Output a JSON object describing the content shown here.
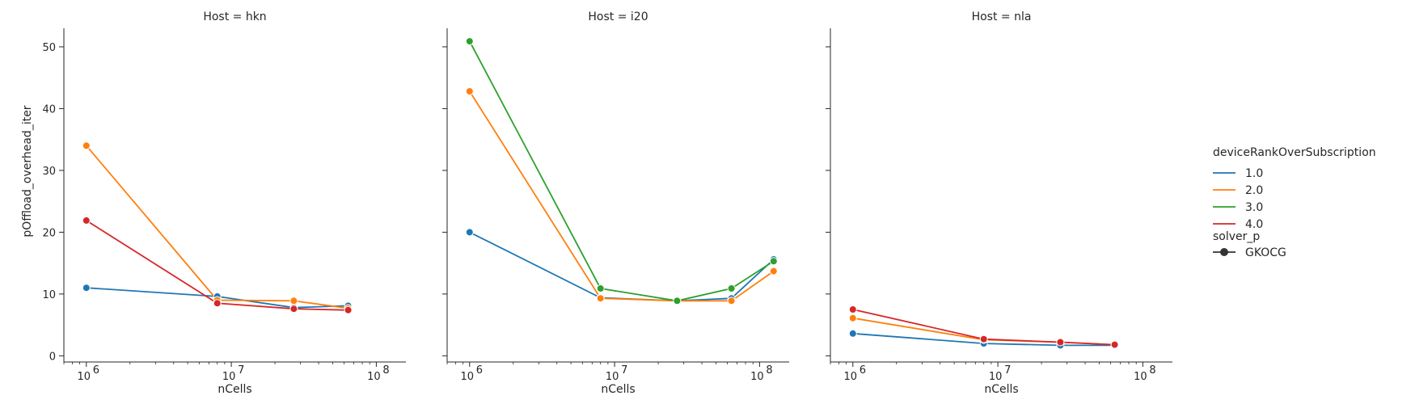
{
  "chart_data": {
    "type": "line",
    "xscale": "log",
    "xlabel": "nCells",
    "ylabel": "pOffload_overhead_iter",
    "xlim": [
      700000,
      160000000
    ],
    "ylim": [
      -1,
      53
    ],
    "xticks": [
      {
        "value": 1000000,
        "base": "10",
        "exp": "6"
      },
      {
        "value": 10000000,
        "base": "10",
        "exp": "7"
      },
      {
        "value": 100000000,
        "base": "10",
        "exp": "8"
      }
    ],
    "yticks": [
      0,
      10,
      20,
      30,
      40,
      50
    ],
    "legend": {
      "hue_title": "deviceRankOverSubscription",
      "style_title": "solver_p",
      "style_entry": "GKOCG",
      "placement": "right"
    },
    "colors": {
      "1.0": "#1f77b4",
      "2.0": "#ff7f0e",
      "3.0": "#2ca02c",
      "4.0": "#d62728"
    },
    "series_names": [
      "1.0",
      "2.0",
      "3.0",
      "4.0"
    ],
    "panels": [
      {
        "title": "Host = hkn",
        "series": [
          {
            "name": "1.0",
            "x": [
              1000000,
              8000000,
              27000000,
              64000000
            ],
            "y": [
              11.0,
              9.6,
              7.8,
              8.1
            ]
          },
          {
            "name": "2.0",
            "x": [
              1000000,
              8000000,
              27000000,
              64000000
            ],
            "y": [
              34.0,
              9.0,
              8.9,
              7.7
            ]
          },
          {
            "name": "4.0",
            "x": [
              1000000,
              8000000,
              27000000,
              64000000
            ],
            "y": [
              21.9,
              8.5,
              7.6,
              7.4
            ]
          }
        ]
      },
      {
        "title": "Host = i20",
        "series": [
          {
            "name": "1.0",
            "x": [
              1000000,
              8000000,
              27000000,
              64000000,
              125000000
            ],
            "y": [
              20.0,
              9.4,
              8.9,
              9.3,
              15.6
            ]
          },
          {
            "name": "2.0",
            "x": [
              1000000,
              8000000,
              27000000,
              64000000,
              125000000
            ],
            "y": [
              42.8,
              9.3,
              8.9,
              8.9,
              13.7
            ]
          },
          {
            "name": "3.0",
            "x": [
              1000000,
              8000000,
              27000000,
              64000000,
              125000000
            ],
            "y": [
              50.9,
              10.9,
              8.9,
              10.9,
              15.3
            ]
          }
        ]
      },
      {
        "title": "Host = nla",
        "series": [
          {
            "name": "1.0",
            "x": [
              1000000,
              8000000,
              27000000,
              64000000
            ],
            "y": [
              3.6,
              2.0,
              1.7,
              1.7
            ]
          },
          {
            "name": "2.0",
            "x": [
              1000000,
              8000000,
              27000000,
              64000000
            ],
            "y": [
              6.1,
              2.6,
              2.2,
              1.8
            ]
          },
          {
            "name": "4.0",
            "x": [
              1000000,
              8000000,
              27000000,
              64000000
            ],
            "y": [
              7.5,
              2.7,
              2.2,
              1.8
            ]
          }
        ]
      }
    ]
  }
}
